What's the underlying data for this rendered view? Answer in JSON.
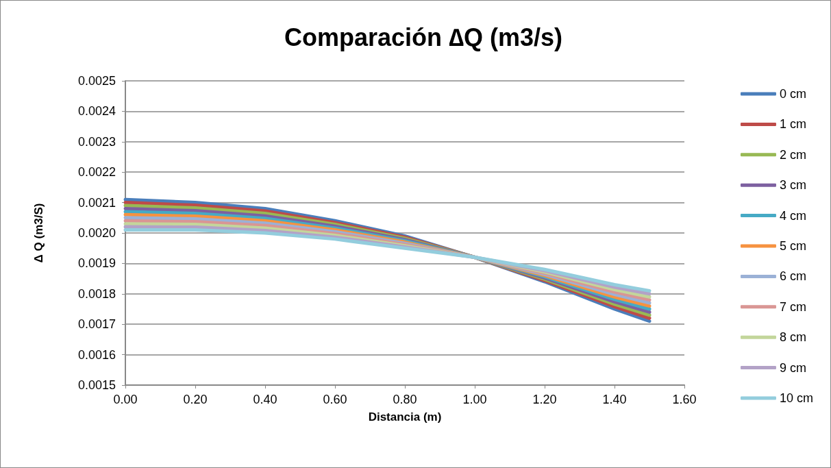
{
  "chart_data": {
    "type": "line",
    "title": "Comparación ∆Q (m3/s)",
    "xlabel": "Distancia (m)",
    "ylabel": "Δ Q (m3/S)",
    "x": [
      0,
      0.2,
      0.4,
      0.6,
      0.8,
      1.0,
      1.2,
      1.4,
      1.5
    ],
    "series": [
      {
        "name": "0 cm",
        "color": "#4a7ebb",
        "values": [
          0.00211,
          0.0021,
          0.00208,
          0.00204,
          0.00199,
          0.00192,
          0.00184,
          0.00175,
          0.00171
        ]
      },
      {
        "name": "1 cm",
        "color": "#be4b48",
        "values": [
          0.0021,
          0.002091,
          0.002072,
          0.002034,
          0.001986,
          0.00192,
          0.001844,
          0.001758,
          0.00172
        ]
      },
      {
        "name": "2 cm",
        "color": "#98b954",
        "values": [
          0.00209,
          0.002082,
          0.002064,
          0.002028,
          0.001982,
          0.00192,
          0.001848,
          0.001766,
          0.00173
        ]
      },
      {
        "name": "3 cm",
        "color": "#7d60a0",
        "values": [
          0.00208,
          0.002073,
          0.002056,
          0.002022,
          0.001978,
          0.00192,
          0.001852,
          0.001774,
          0.00174
        ]
      },
      {
        "name": "4 cm",
        "color": "#46aac5",
        "values": [
          0.00207,
          0.002064,
          0.002048,
          0.002016,
          0.001974,
          0.00192,
          0.001856,
          0.001782,
          0.00175
        ]
      },
      {
        "name": "5 cm",
        "color": "#f69240",
        "values": [
          0.00206,
          0.002055,
          0.00204,
          0.00201,
          0.00197,
          0.00192,
          0.00186,
          0.00179,
          0.00176
        ]
      },
      {
        "name": "6 cm",
        "color": "#9bb1d6",
        "values": [
          0.00205,
          0.002046,
          0.002032,
          0.002004,
          0.001966,
          0.00192,
          0.001864,
          0.001798,
          0.00177
        ]
      },
      {
        "name": "7 cm",
        "color": "#d99694",
        "values": [
          0.00204,
          0.002037,
          0.002024,
          0.001998,
          0.001962,
          0.00192,
          0.001868,
          0.001806,
          0.00178
        ]
      },
      {
        "name": "8 cm",
        "color": "#c3d69b",
        "values": [
          0.00203,
          0.002028,
          0.002016,
          0.001992,
          0.001958,
          0.00192,
          0.001872,
          0.001814,
          0.00179
        ]
      },
      {
        "name": "9 cm",
        "color": "#b3a2c7",
        "values": [
          0.00202,
          0.002019,
          0.002008,
          0.001986,
          0.001954,
          0.00192,
          0.001876,
          0.001822,
          0.0018
        ]
      },
      {
        "name": "10 cm",
        "color": "#93cddd",
        "values": [
          0.00201,
          0.00201,
          0.002,
          0.00198,
          0.00195,
          0.00192,
          0.00188,
          0.00183,
          0.00181
        ]
      }
    ],
    "xlim": [
      0,
      1.6
    ],
    "xticks": [
      {
        "value": 0,
        "label": "0.00"
      },
      {
        "value": 0.2,
        "label": "0.20"
      },
      {
        "value": 0.4,
        "label": "0.40"
      },
      {
        "value": 0.6,
        "label": "0.60"
      },
      {
        "value": 0.8,
        "label": "0.80"
      },
      {
        "value": 1.0,
        "label": "1.00"
      },
      {
        "value": 1.2,
        "label": "1.20"
      },
      {
        "value": 1.4,
        "label": "1.40"
      },
      {
        "value": 1.6,
        "label": "1.60"
      }
    ],
    "ylim": [
      0.0015,
      0.0025
    ],
    "yticks": [
      0.0015,
      0.0016,
      0.0017,
      0.0018,
      0.0019,
      {
        "value": 0.002,
        "label": "0.0020"
      },
      0.0021,
      0.0022,
      0.0023,
      0.0024,
      0.0025
    ],
    "grid": "y",
    "legend": "right",
    "marker": "none",
    "line_style": "solid"
  }
}
